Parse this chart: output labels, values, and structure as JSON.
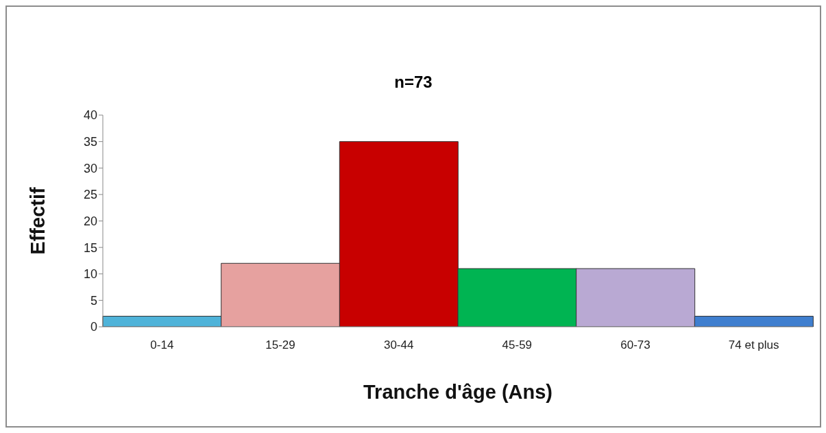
{
  "chart_data": {
    "type": "bar",
    "title": "n=73",
    "xlabel": "Tranche d'âge (Ans)",
    "ylabel": "Effectif",
    "categories": [
      "0-14",
      "15-29",
      "30-44",
      "45-59",
      "60-73",
      "74 et plus"
    ],
    "values": [
      2,
      12,
      35,
      11,
      11,
      2
    ],
    "colors": [
      "#4fb3d9",
      "#e6a19f",
      "#c80000",
      "#00b452",
      "#b9a9d3",
      "#3f7fcf"
    ],
    "ylim": [
      0,
      40
    ],
    "yticks": [
      0,
      5,
      10,
      15,
      20,
      25,
      30,
      35,
      40
    ],
    "grid": false
  }
}
